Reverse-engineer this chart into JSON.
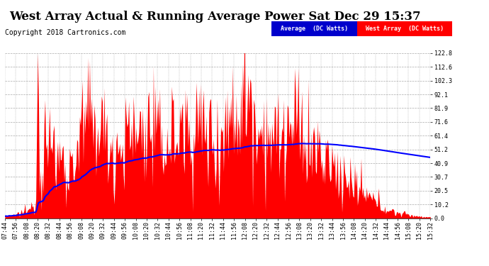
{
  "title": "West Array Actual & Running Average Power Sat Dec 29 15:37",
  "copyright": "Copyright 2018 Cartronics.com",
  "ylim": [
    0.0,
    122.8
  ],
  "yticks": [
    0.0,
    10.2,
    20.5,
    30.7,
    40.9,
    51.2,
    61.4,
    71.6,
    81.9,
    92.1,
    102.3,
    112.6,
    122.8
  ],
  "legend_avg_label": "Average  (DC Watts)",
  "legend_west_label": "West Array  (DC Watts)",
  "avg_color": "#0000FF",
  "west_color": "#FF0000",
  "avg_legend_bg": "#0000CC",
  "west_legend_bg": "#FF0000",
  "background_color": "#FFFFFF",
  "grid_color": "#AAAAAA",
  "title_fontsize": 12,
  "copyright_fontsize": 7,
  "tick_fontsize": 6,
  "xtick_labels": [
    "07:44",
    "07:56",
    "08:08",
    "08:20",
    "08:32",
    "08:44",
    "08:56",
    "09:08",
    "09:20",
    "09:32",
    "09:44",
    "09:56",
    "10:08",
    "10:20",
    "10:32",
    "10:44",
    "10:56",
    "11:08",
    "11:20",
    "11:32",
    "11:44",
    "11:56",
    "12:08",
    "12:20",
    "12:32",
    "12:44",
    "12:56",
    "13:08",
    "13:20",
    "13:32",
    "13:44",
    "13:56",
    "14:08",
    "14:20",
    "14:32",
    "14:44",
    "14:56",
    "15:08",
    "15:20",
    "15:32"
  ]
}
